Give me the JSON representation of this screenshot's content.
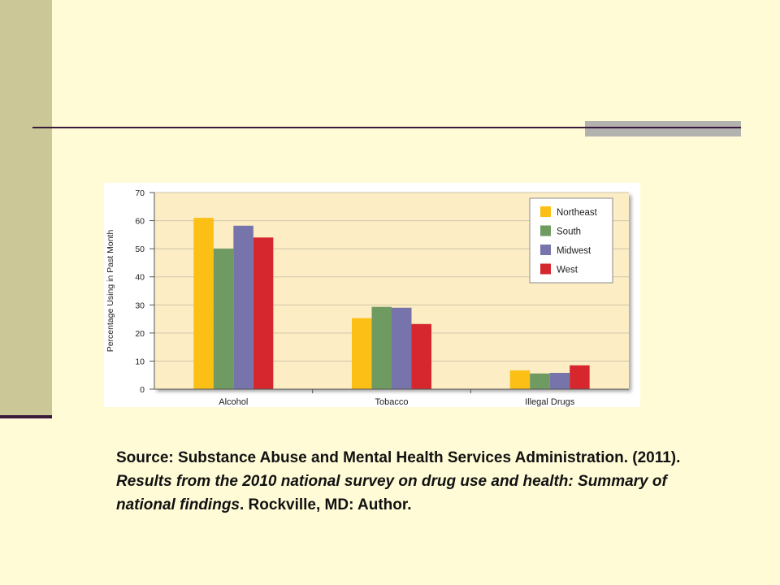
{
  "colors": {
    "background": "#fffbd7",
    "sidebar": "#cbc797",
    "rule": "#3a1a3a",
    "plot_background": "#fcedc4",
    "gridline": "#cfc6a8",
    "series": {
      "Northeast": "#fbbf15",
      "South": "#6f9a61",
      "Midwest": "#7674aa",
      "West": "#d5272d"
    }
  },
  "chart_data": {
    "type": "bar",
    "categories": [
      "Alcohol",
      "Tobacco",
      "Illegal Drugs"
    ],
    "series": [
      {
        "name": "Northeast",
        "values": [
          61,
          25.3,
          6.7
        ]
      },
      {
        "name": "South",
        "values": [
          50,
          29.3,
          5.6
        ]
      },
      {
        "name": "Midwest",
        "values": [
          58.2,
          29,
          5.8
        ]
      },
      {
        "name": "West",
        "values": [
          54,
          23.2,
          8.5
        ]
      }
    ],
    "title": "",
    "xlabel": "",
    "ylabel": "Percentage Using in Past Month",
    "ylim": [
      0,
      70
    ],
    "yticks": [
      0,
      10,
      20,
      30,
      40,
      50,
      60,
      70
    ],
    "grid": true,
    "legend": "top-right"
  },
  "source": {
    "prefix": "Source: Substance Abuse and Mental Health Services Administration. (2011). ",
    "title_italic": "Results from the 2010 national survey on drug use and health: Summary of national findings",
    "suffix": ". Rockville, MD: Author."
  }
}
